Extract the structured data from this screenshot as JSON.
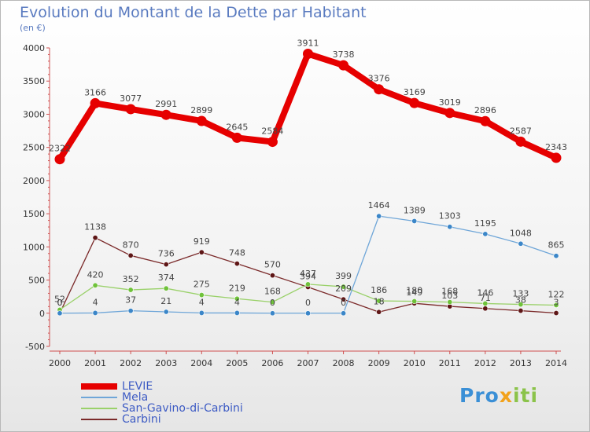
{
  "title": "Evolution du Montant de la Dette par Habitant",
  "subtitle": "(en €)",
  "logo": {
    "parts": [
      "Pro",
      "x",
      "iti"
    ]
  },
  "chart_data": {
    "type": "line",
    "x": [
      "2000",
      "2001",
      "2002",
      "2003",
      "2004",
      "2005",
      "2006",
      "2007",
      "2008",
      "2009",
      "2010",
      "2011",
      "2012",
      "2013",
      "2014"
    ],
    "ylim": [
      -500,
      4000
    ],
    "yticks": [
      "-500",
      "0",
      "500",
      "1000",
      "1500",
      "2000",
      "2500",
      "3000",
      "3500",
      "4000"
    ],
    "grid": false,
    "legend_position": "bottom-left",
    "series": [
      {
        "name": "LEVIE",
        "color": "#e60000",
        "width": 8,
        "radius": 6.5,
        "values": [
          2322,
          3166,
          3077,
          2991,
          2899,
          2645,
          2584,
          3911,
          3738,
          3376,
          3169,
          3019,
          2896,
          2587,
          2343
        ],
        "labels": [
          "2322",
          "3166",
          "3077",
          "2991",
          "2899",
          "2645",
          "2584",
          "3911",
          "3738",
          "3376",
          "3169",
          "3019",
          "2896",
          "2587",
          "2343"
        ]
      },
      {
        "name": "Mela",
        "color": "#6fa6d8",
        "dot": "#3b86c8",
        "width": 1.3,
        "radius": 3.2,
        "values": [
          0,
          4,
          37,
          21,
          4,
          4,
          0,
          0,
          0,
          1464,
          1389,
          1303,
          1195,
          1048,
          865
        ],
        "labels": [
          "0",
          "4",
          "37",
          "21",
          "4",
          "4",
          "0",
          "0",
          "0",
          "1464",
          "1389",
          "1303",
          "1195",
          "1048",
          "865"
        ]
      },
      {
        "name": "San-Gavino-di-Carbini",
        "color": "#9ad16a",
        "dot": "#6fc23a",
        "width": 1.3,
        "radius": 3.2,
        "values": [
          52,
          420,
          352,
          374,
          275,
          219,
          168,
          437,
          399,
          186,
          180,
          168,
          146,
          133,
          122
        ],
        "labels": [
          "52",
          "420",
          "352",
          "374",
          "275",
          "219",
          "168",
          "437",
          "399",
          "186",
          "180",
          "168",
          "146",
          "133",
          "122"
        ]
      },
      {
        "name": "Carbini",
        "color": "#7b2a2a",
        "dot": "#5e1616",
        "width": 1.3,
        "radius": 3.2,
        "values": [
          0,
          1138,
          870,
          736,
          919,
          748,
          570,
          394,
          209,
          18,
          149,
          103,
          71,
          38,
          3
        ],
        "labels": [
          "0",
          "1138",
          "870",
          "736",
          "919",
          "748",
          "570",
          "394",
          "209",
          "18",
          "149",
          "103",
          "71",
          "38",
          "3"
        ]
      }
    ]
  }
}
